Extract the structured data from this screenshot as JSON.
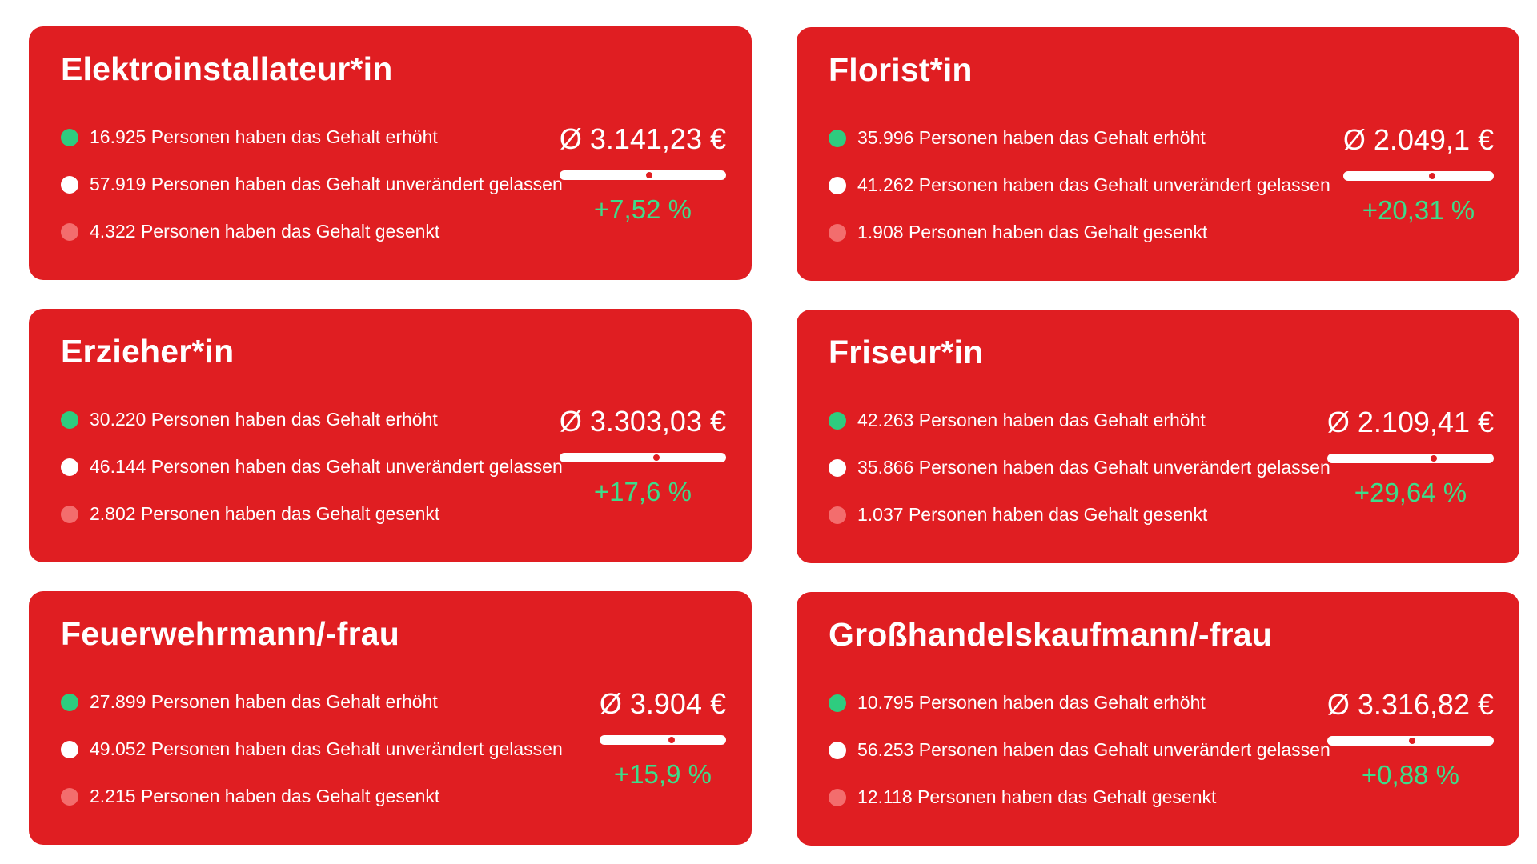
{
  "colors": {
    "card_background": "#e01e22",
    "increase": "#2ecc7f",
    "unchanged": "#ffffff",
    "decrease": "#f36d6d",
    "change_text": "#3ddc8a"
  },
  "cards": [
    {
      "title": "Elektroinstallateur*in",
      "stats": {
        "raised": "16.925 Personen haben das Gehalt erhöht",
        "unchanged": "57.919 Personen haben das Gehalt unverändert gelassen",
        "lowered": "4.322 Personen haben das Gehalt gesenkt"
      },
      "average": "Ø 3.141,23 €",
      "change": "+7,52 %",
      "bar_marker_fraction": 0.54
    },
    {
      "title": "Florist*in",
      "stats": {
        "raised": "35.996 Personen haben das Gehalt erhöht",
        "unchanged": "41.262 Personen haben das Gehalt unverändert gelassen",
        "lowered": "1.908 Personen haben das Gehalt gesenkt"
      },
      "average": "Ø 2.049,1 €",
      "change": "+20,31 %",
      "bar_marker_fraction": 0.59
    },
    {
      "title": "Erzieher*in",
      "stats": {
        "raised": "30.220 Personen haben das Gehalt erhöht",
        "unchanged": "46.144 Personen haben das Gehalt unverändert gelassen",
        "lowered": "2.802 Personen haben das Gehalt gesenkt"
      },
      "average": "Ø 3.303,03 €",
      "change": "+17,6 %",
      "bar_marker_fraction": 0.58
    },
    {
      "title": "Friseur*in",
      "stats": {
        "raised": "42.263 Personen haben das Gehalt erhöht",
        "unchanged": "35.866 Personen haben das Gehalt unverändert gelassen",
        "lowered": "1.037 Personen haben das Gehalt gesenkt"
      },
      "average": "Ø 2.109,41 €",
      "change": "+29,64 %",
      "bar_marker_fraction": 0.64
    },
    {
      "title": "Feuerwehrmann/-frau",
      "stats": {
        "raised": "27.899 Personen haben das Gehalt erhöht",
        "unchanged": "49.052 Personen haben das Gehalt unverändert gelassen",
        "lowered": "2.215 Personen haben das Gehalt gesenkt"
      },
      "average": "Ø 3.904 €",
      "change": "+15,9 %",
      "bar_marker_fraction": 0.57
    },
    {
      "title": "Großhandelskaufmann/-frau",
      "stats": {
        "raised": "10.795 Personen haben das Gehalt erhöht",
        "unchanged": "56.253 Personen haben das Gehalt unverändert gelassen",
        "lowered": "12.118 Personen haben das Gehalt gesenkt"
      },
      "average": "Ø 3.316,82 €",
      "change": "+0,88 %",
      "bar_marker_fraction": 0.51
    }
  ]
}
